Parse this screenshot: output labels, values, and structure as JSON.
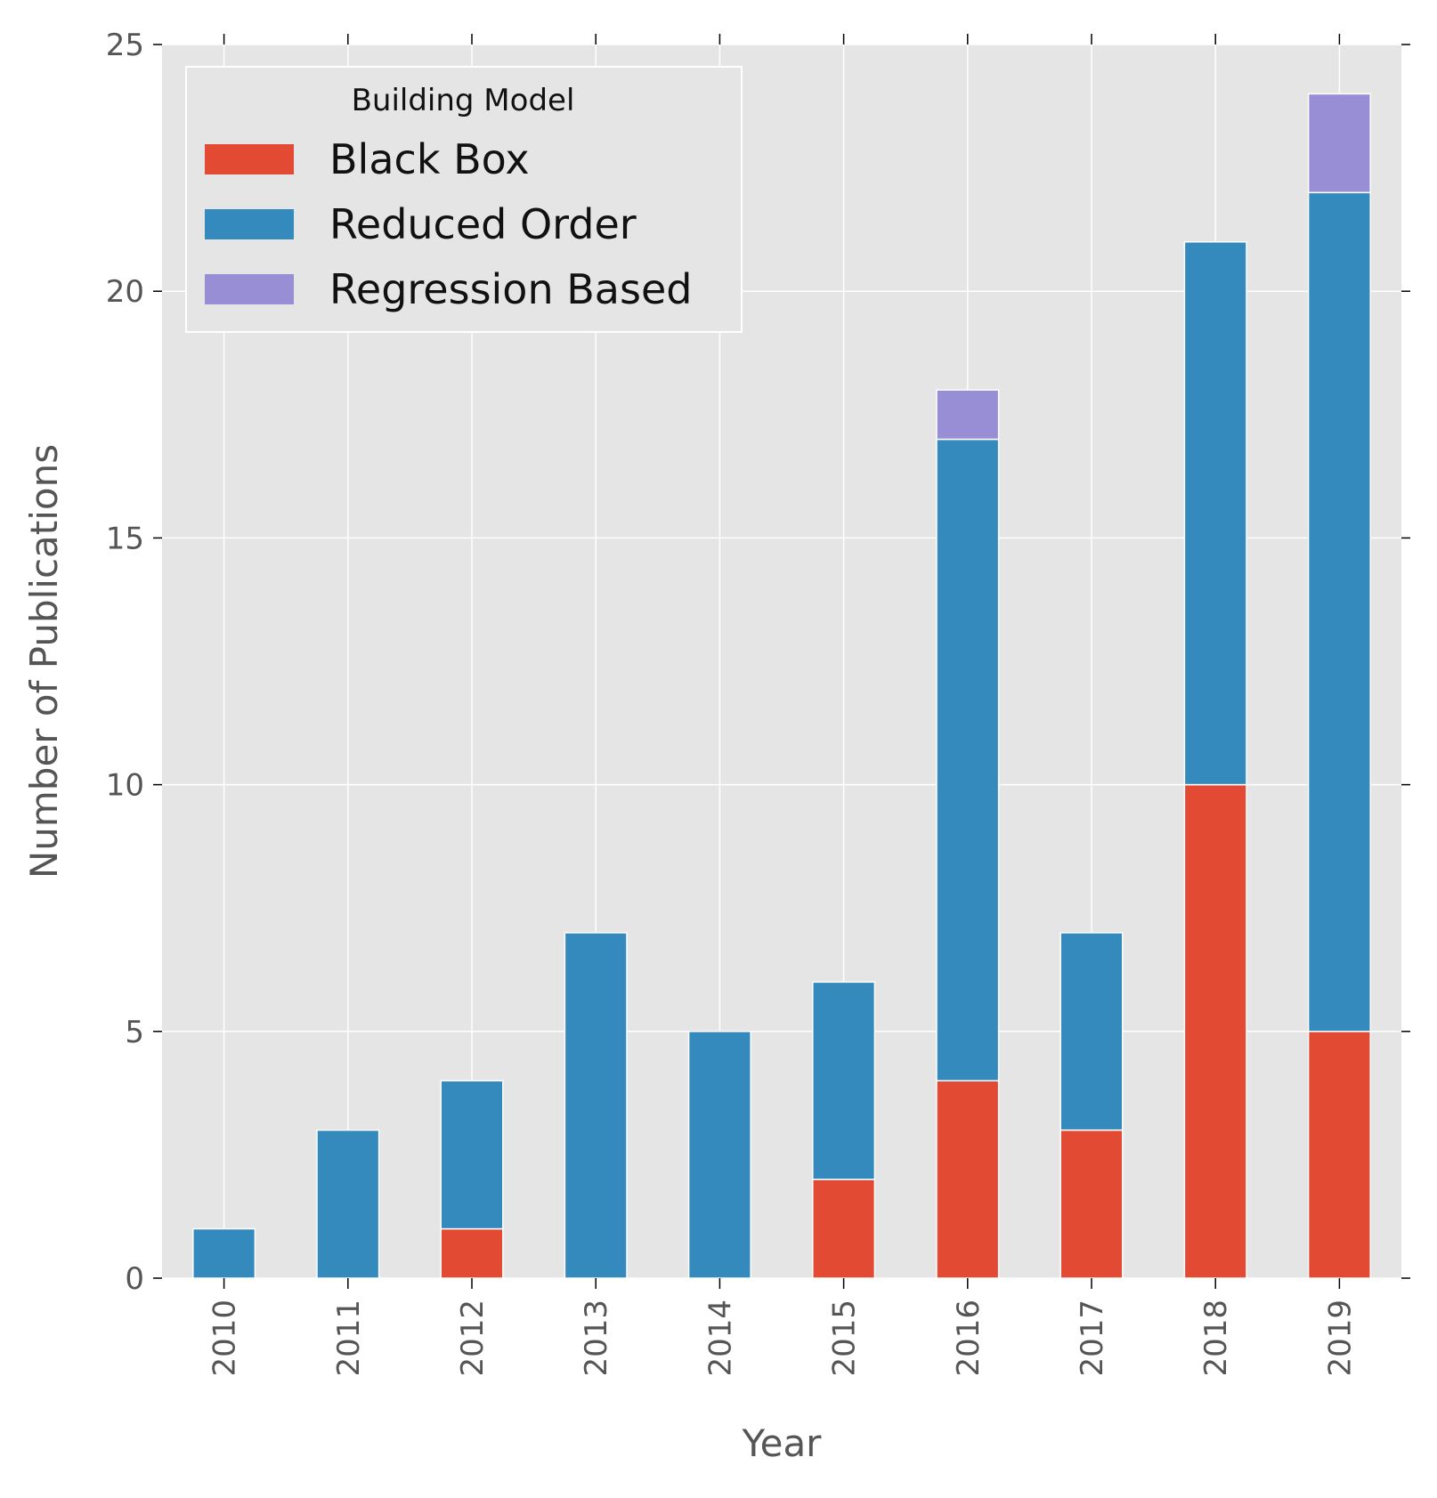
{
  "chart_data": {
    "type": "bar",
    "stacked": true,
    "title": "",
    "xlabel": "Year",
    "ylabel": "Number of Publications",
    "ylim": [
      0,
      25
    ],
    "yticks": [
      0,
      5,
      10,
      15,
      20,
      25
    ],
    "grid": true,
    "legend_position": "top-left",
    "legend_title": "Building Model",
    "categories": [
      "2010",
      "2011",
      "2012",
      "2013",
      "2014",
      "2015",
      "2016",
      "2017",
      "2018",
      "2019"
    ],
    "series": [
      {
        "name": "Black Box",
        "color": "#E24A33",
        "values": [
          0,
          0,
          1,
          0,
          0,
          2,
          4,
          3,
          10,
          5
        ]
      },
      {
        "name": "Reduced Order",
        "color": "#348ABD",
        "values": [
          1,
          3,
          3,
          7,
          5,
          4,
          13,
          4,
          11,
          17
        ]
      },
      {
        "name": "Regression Based",
        "color": "#988ED5",
        "values": [
          0,
          0,
          0,
          0,
          0,
          0,
          1,
          0,
          0,
          2
        ]
      }
    ]
  }
}
